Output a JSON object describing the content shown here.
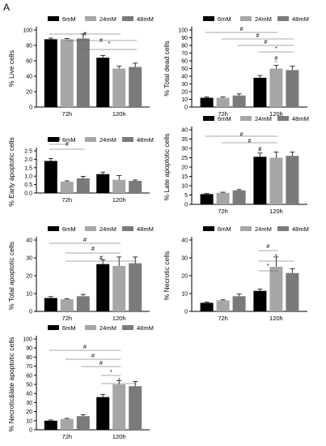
{
  "figure": {
    "panel_label": "A"
  },
  "chart_data": [
    {
      "type": "bar",
      "ylabel": "% Live cells",
      "ylim": [
        0,
        100
      ],
      "yticks": [
        0,
        20,
        40,
        60,
        80,
        100
      ],
      "categories": [
        "72h",
        "120h"
      ],
      "series": [
        {
          "name": "6mM",
          "color": "#000000",
          "values": [
            88,
            64
          ],
          "errors": [
            1.5,
            3
          ]
        },
        {
          "name": "24mM",
          "color": "#a6a6a6",
          "values": [
            88,
            50
          ],
          "errors": [
            1,
            3
          ]
        },
        {
          "name": "48mM",
          "color": "#7a7a7a",
          "values": [
            89,
            52
          ],
          "errors": [
            6,
            5
          ]
        }
      ],
      "annotations": [
        "#",
        "#",
        "*"
      ]
    },
    {
      "type": "bar",
      "ylabel": "% Total dead cells",
      "ylim": [
        0,
        100
      ],
      "yticks": [
        0,
        10,
        20,
        30,
        40,
        50,
        60,
        70,
        80,
        90,
        100
      ],
      "categories": [
        "72h",
        "120h"
      ],
      "series": [
        {
          "name": "6mM",
          "color": "#000000",
          "values": [
            12,
            38
          ],
          "errors": [
            1,
            3
          ]
        },
        {
          "name": "24mM",
          "color": "#a6a6a6",
          "values": [
            12,
            50
          ],
          "errors": [
            1,
            4
          ]
        },
        {
          "name": "48mM",
          "color": "#7a7a7a",
          "values": [
            15,
            48
          ],
          "errors": [
            2,
            5
          ]
        }
      ],
      "annotations": [
        "#",
        "#",
        "#",
        "*",
        "#"
      ]
    },
    {
      "type": "bar",
      "ylabel": "% Early apoptotic cells",
      "ylim": [
        0,
        2.5
      ],
      "yticks": [
        0.0,
        0.5,
        1.0,
        1.5,
        2.0,
        2.5
      ],
      "categories": [
        "72h",
        "120h"
      ],
      "series": [
        {
          "name": "6mM",
          "color": "#000000",
          "values": [
            1.9,
            1.12
          ],
          "errors": [
            0.15,
            0.12
          ]
        },
        {
          "name": "24mM",
          "color": "#a6a6a6",
          "values": [
            0.67,
            0.78
          ],
          "errors": [
            0.05,
            0.25
          ]
        },
        {
          "name": "48mM",
          "color": "#7a7a7a",
          "values": [
            0.87,
            0.72
          ],
          "errors": [
            0.12,
            0.05
          ]
        }
      ],
      "annotations": [
        "#",
        "#"
      ]
    },
    {
      "type": "bar",
      "ylabel": "% Late apoptotic cells",
      "ylim": [
        0,
        40
      ],
      "yticks": [
        0,
        5,
        10,
        15,
        20,
        25,
        30,
        35,
        40
      ],
      "categories": [
        "72h",
        "120h"
      ],
      "series": [
        {
          "name": "6mM",
          "color": "#000000",
          "values": [
            5.5,
            25.5
          ],
          "errors": [
            0.3,
            2
          ]
        },
        {
          "name": "24mM",
          "color": "#a6a6a6",
          "values": [
            6.2,
            25
          ],
          "errors": [
            0.3,
            3
          ]
        },
        {
          "name": "48mM",
          "color": "#7a7a7a",
          "values": [
            7.5,
            26
          ],
          "errors": [
            0.4,
            2
          ]
        }
      ],
      "annotations": [
        "#",
        "#",
        "#"
      ]
    },
    {
      "type": "bar",
      "ylabel": "% Total apoptotic cells",
      "ylim": [
        0,
        40
      ],
      "yticks": [
        0,
        10,
        20,
        30,
        40
      ],
      "categories": [
        "72h",
        "120h"
      ],
      "series": [
        {
          "name": "6mM",
          "color": "#000000",
          "values": [
            7.5,
            26.5
          ],
          "errors": [
            0.8,
            2.5
          ]
        },
        {
          "name": "24mM",
          "color": "#a6a6a6",
          "values": [
            6.8,
            25.5
          ],
          "errors": [
            0.3,
            5
          ]
        },
        {
          "name": "48mM",
          "color": "#7a7a7a",
          "values": [
            8.5,
            27
          ],
          "errors": [
            1,
            3.5
          ]
        }
      ],
      "annotations": [
        "#",
        "#",
        "#"
      ]
    },
    {
      "type": "bar",
      "ylabel": "% Necrotic cells",
      "ylim": [
        0,
        40
      ],
      "yticks": [
        0,
        10,
        20,
        30,
        40
      ],
      "categories": [
        "72h",
        "120h"
      ],
      "series": [
        {
          "name": "6mM",
          "color": "#000000",
          "values": [
            4.8,
            11.5
          ],
          "errors": [
            0.4,
            1
          ]
        },
        {
          "name": "24mM",
          "color": "#a6a6a6",
          "values": [
            6.2,
            25
          ],
          "errors": [
            0.3,
            5.5
          ]
        },
        {
          "name": "48mM",
          "color": "#7a7a7a",
          "values": [
            8.5,
            21.5
          ],
          "errors": [
            1.2,
            2.5
          ]
        }
      ],
      "annotations": [
        "#",
        "*",
        "*"
      ]
    },
    {
      "type": "bar",
      "ylabel": "% Necrotic&late apoptotic cells",
      "ylim": [
        0,
        100
      ],
      "yticks": [
        0,
        10,
        20,
        30,
        40,
        50,
        60,
        70,
        80,
        90,
        100
      ],
      "categories": [
        "72h",
        "120h"
      ],
      "series": [
        {
          "name": "6mM",
          "color": "#000000",
          "values": [
            10,
            36
          ],
          "errors": [
            0.8,
            3
          ]
        },
        {
          "name": "24mM",
          "color": "#a6a6a6",
          "values": [
            12,
            50
          ],
          "errors": [
            0.6,
            4
          ]
        },
        {
          "name": "48mM",
          "color": "#7a7a7a",
          "values": [
            15,
            48
          ],
          "errors": [
            1.5,
            5
          ]
        }
      ],
      "annotations": [
        "#",
        "#",
        "#",
        "*",
        "*"
      ]
    }
  ]
}
